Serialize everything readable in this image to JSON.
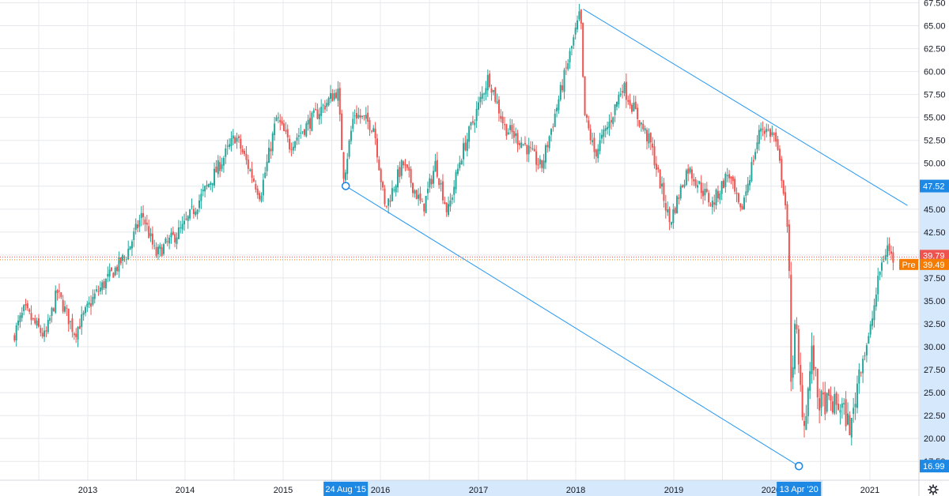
{
  "chart_data": {
    "type": "candlestick",
    "y_axis": {
      "ticks": [
        "17.50",
        "20.00",
        "22.50",
        "25.00",
        "27.50",
        "30.00",
        "32.50",
        "35.00",
        "37.50",
        "40.00",
        "42.50",
        "45.00",
        "47.50",
        "50.00",
        "52.50",
        "55.00",
        "57.50",
        "60.00",
        "62.50",
        "65.00",
        "67.50"
      ],
      "range": [
        16.4,
        67.8
      ],
      "position": "right"
    },
    "x_axis": {
      "ticks": [
        "2013",
        "2014",
        "2015",
        "2016",
        "2017",
        "2018",
        "2019",
        "2020",
        "2021"
      ],
      "range": [
        "2012-04-01",
        "2021-05-20"
      ]
    },
    "grid": true,
    "price_path": [
      [
        "2012-04-01",
        31.0
      ],
      [
        "2012-05-15",
        34.0
      ],
      [
        "2012-08-01",
        31.0
      ],
      [
        "2012-09-15",
        36.0
      ],
      [
        "2012-11-20",
        31.5
      ],
      [
        "2013-02-01",
        35.5
      ],
      [
        "2013-06-01",
        40.0
      ],
      [
        "2013-08-01",
        44.5
      ],
      [
        "2013-09-20",
        40.0
      ],
      [
        "2014-01-01",
        43.0
      ],
      [
        "2014-05-01",
        49.0
      ],
      [
        "2014-07-15",
        53.0
      ],
      [
        "2014-10-15",
        46.5
      ],
      [
        "2014-12-15",
        55.0
      ],
      [
        "2015-02-01",
        52.0
      ],
      [
        "2015-08-01",
        58.0
      ],
      [
        "2015-08-24",
        48.5
      ],
      [
        "2015-10-01",
        55.5
      ],
      [
        "2015-12-15",
        54.0
      ],
      [
        "2016-01-25",
        45.0
      ],
      [
        "2016-04-01",
        50.0
      ],
      [
        "2016-06-15",
        45.0
      ],
      [
        "2016-08-01",
        50.0
      ],
      [
        "2016-09-15",
        44.5
      ],
      [
        "2016-11-01",
        50.5
      ],
      [
        "2017-02-15",
        59.5
      ],
      [
        "2017-04-15",
        54.0
      ],
      [
        "2017-07-01",
        52.0
      ],
      [
        "2017-09-01",
        49.5
      ],
      [
        "2017-11-01",
        56.5
      ],
      [
        "2018-01-26",
        66.5
      ],
      [
        "2018-02-08",
        55.5
      ],
      [
        "2018-03-20",
        51.0
      ],
      [
        "2018-05-15",
        54.5
      ],
      [
        "2018-07-01",
        58.5
      ],
      [
        "2018-10-15",
        52.0
      ],
      [
        "2018-12-24",
        43.5
      ],
      [
        "2019-03-01",
        49.5
      ],
      [
        "2019-06-01",
        45.5
      ],
      [
        "2019-08-01",
        49.0
      ],
      [
        "2019-09-15",
        44.5
      ],
      [
        "2019-12-01",
        54.0
      ],
      [
        "2020-01-20",
        53.0
      ],
      [
        "2020-02-20",
        48.0
      ],
      [
        "2020-03-05",
        44.5
      ],
      [
        "2020-03-16",
        37.0
      ],
      [
        "2020-03-23",
        25.5
      ],
      [
        "2020-04-08",
        33.5
      ],
      [
        "2020-04-20",
        27.0
      ],
      [
        "2020-05-10",
        21.5
      ],
      [
        "2020-06-08",
        29.5
      ],
      [
        "2020-07-01",
        24.0
      ],
      [
        "2020-09-25",
        23.5
      ],
      [
        "2020-10-30",
        21.0
      ],
      [
        "2020-12-01",
        28.0
      ],
      [
        "2021-01-05",
        31.0
      ],
      [
        "2021-02-15",
        38.5
      ],
      [
        "2021-03-15",
        41.0
      ],
      [
        "2021-04-01",
        39.5
      ]
    ],
    "trendlines": [
      {
        "from": [
          "2015-08-24",
          47.52
        ],
        "to": [
          "2020-04-13",
          16.99
        ],
        "label_start": "24 Aug '15",
        "label_end": "13 Apr '20"
      },
      {
        "from": [
          "2018-01-29",
          66.8
        ],
        "to": [
          "2021-05-20",
          45.4
        ]
      }
    ],
    "price_lines": [
      {
        "value": 39.79,
        "label": "39.79",
        "color": "#ef5350"
      },
      {
        "value": 39.49,
        "label": "39.49",
        "prefix": "Pre",
        "color": "#f57c00"
      }
    ],
    "axis_markers": [
      {
        "value": 47.52,
        "label": "47.52"
      },
      {
        "value": 16.99,
        "label": "16.99"
      }
    ]
  },
  "colors": {
    "up": "#26a69a",
    "down": "#ef5350",
    "trendline": "#2196f3",
    "marker": "#1e88e5",
    "premarket": "#f57c00",
    "grid": "#e6e8ec",
    "text": "#131722"
  },
  "icons": {
    "settings": "gear-icon"
  }
}
